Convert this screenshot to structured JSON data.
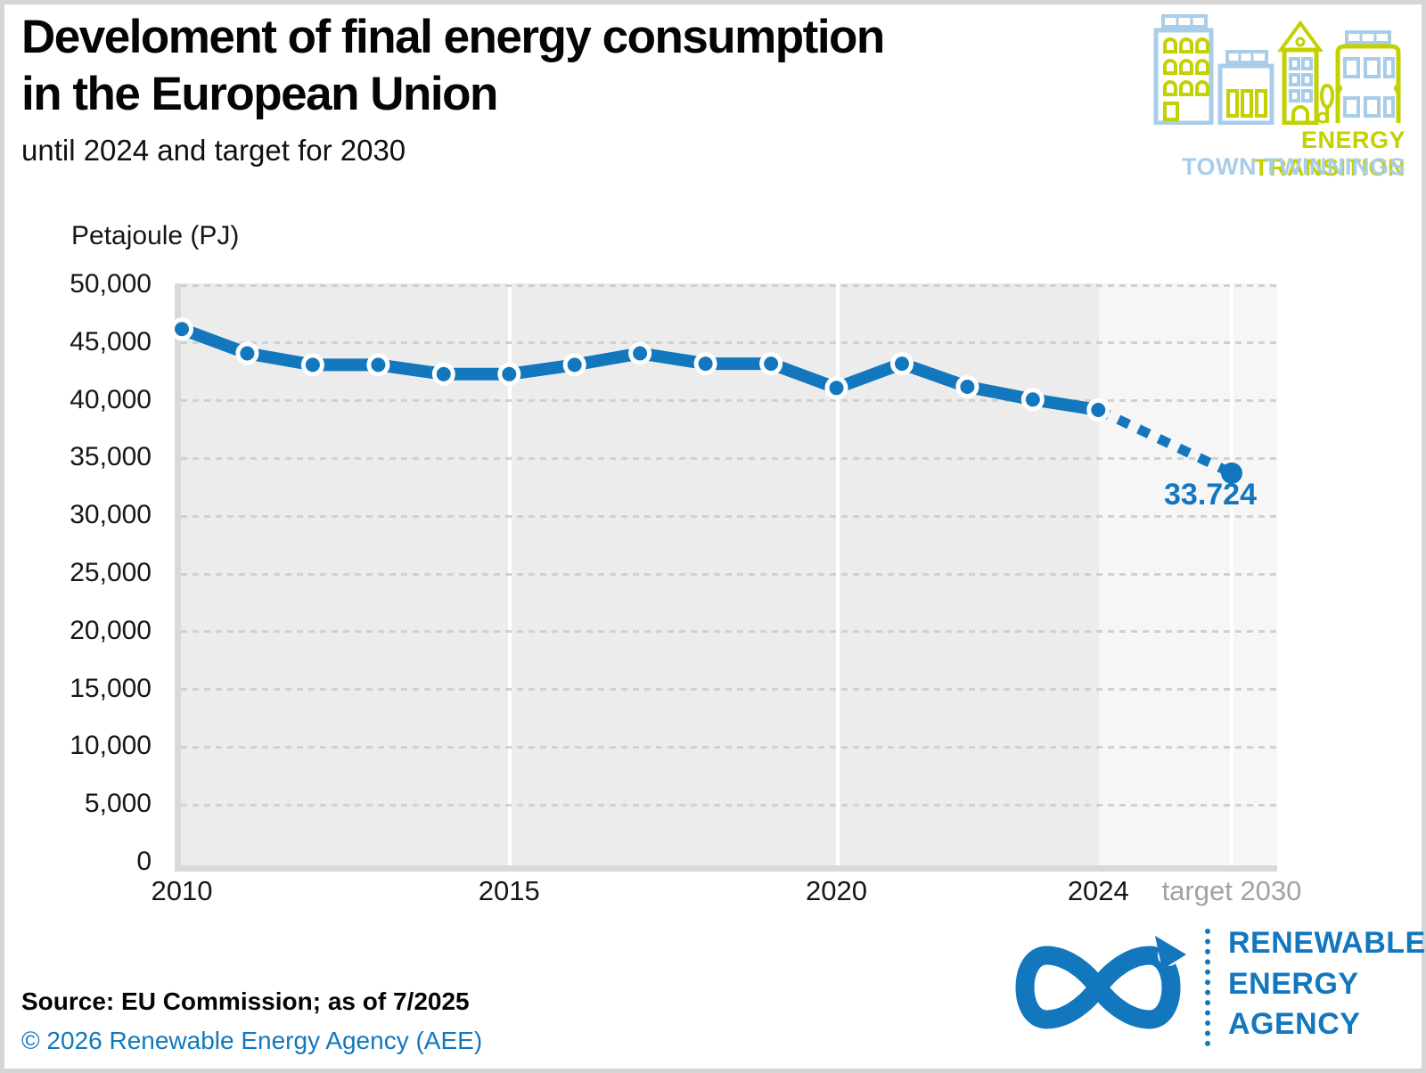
{
  "page": {
    "title_line1": "Develoment of final energy consumption",
    "title_line2": "in the European Union",
    "subtitle": "until 2024 and target for 2030",
    "source_note": "Source: EU Commission; as of 7/2025",
    "copyright": "© 2026 Renewable Energy Agency (AEE)"
  },
  "logo_top_right": {
    "line1": "ENERGY TRANSITION",
    "line2": "TOWN TWINNINGS",
    "color_green": "#c3d100",
    "color_light_blue": "#a9cde9"
  },
  "logo_bottom_right": {
    "line1": "RENEWABLE",
    "line2": "ENERGY",
    "line3": "AGENCY",
    "color": "#1377be"
  },
  "chart_data": {
    "type": "line",
    "title": "Develoment of final energy consumption in the European Union",
    "subtitle": "until 2024 and target for 2030",
    "ylabel": "Petajoule (PJ)",
    "xlabel": "",
    "x": [
      2010,
      2011,
      2012,
      2013,
      2014,
      2015,
      2016,
      2017,
      2018,
      2019,
      2020,
      2021,
      2022,
      2023,
      2024
    ],
    "values": [
      46200,
      44100,
      43100,
      43100,
      42300,
      42300,
      43100,
      44100,
      43200,
      43200,
      41100,
      43200,
      41200,
      40100,
      39200
    ],
    "target": {
      "year": 2030,
      "value": 33724,
      "label": "33.724",
      "connector_style": "dotted"
    },
    "ylim": [
      0,
      50000
    ],
    "y_ticks": [
      0,
      5000,
      10000,
      15000,
      20000,
      25000,
      30000,
      35000,
      40000,
      45000,
      50000
    ],
    "y_tick_labels": [
      "0",
      "5,000",
      "10,000",
      "15,000",
      "20,000",
      "25,000",
      "30,000",
      "35,000",
      "40,000",
      "45,000",
      "50,000"
    ],
    "x_ticks": [
      {
        "label": "2010",
        "year": 2010,
        "muted": false
      },
      {
        "label": "2015",
        "year": 2015,
        "muted": false
      },
      {
        "label": "2020",
        "year": 2020,
        "muted": false
      },
      {
        "label": "2024",
        "year": 2024,
        "muted": false
      },
      {
        "label": "target 2030",
        "year": "target",
        "muted": true
      }
    ],
    "grid": "horizontal dotted",
    "legend": null,
    "line_color": "#1377be",
    "marker": "circle-with-white-ring"
  }
}
